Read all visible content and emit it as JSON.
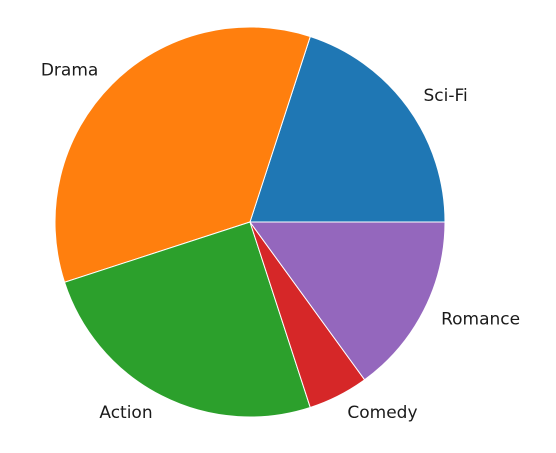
{
  "chart_data": {
    "type": "pie",
    "title": "",
    "categories": [
      "Sci-Fi",
      "Drama",
      "Action",
      "Comedy",
      "Romance"
    ],
    "values": [
      20,
      35,
      25,
      5,
      15
    ],
    "colors": [
      "#1f77b4",
      "#ff7f0e",
      "#2ca02c",
      "#d62728",
      "#9467bd"
    ],
    "start_angle_deg": 0,
    "direction": "counterclockwise",
    "legend": "none",
    "labels_outside": true
  }
}
